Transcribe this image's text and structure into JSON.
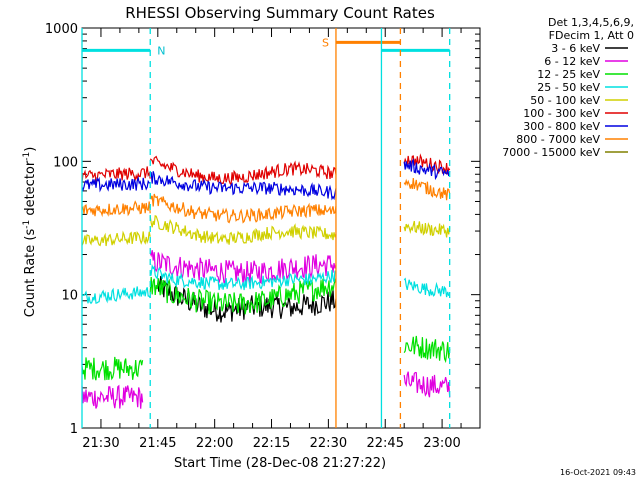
{
  "chart_data": {
    "type": "line",
    "title": "RHESSI Observing Summary Count Rates",
    "xlabel": "Start Time (28-Dec-08 21:27:22)",
    "ylabel_main": "Count Rate (s",
    "ylabel_sup1": "-1",
    "ylabel_mid": " detector",
    "ylabel_sup2": "-1",
    "ylabel_end": ")",
    "y_scale": "log",
    "ylim": [
      1,
      1000
    ],
    "xlim_minutes": [
      -5,
      100
    ],
    "x_ticks": [
      {
        "t": 0,
        "label": "21:30"
      },
      {
        "t": 15,
        "label": "21:45"
      },
      {
        "t": 30,
        "label": "22:00"
      },
      {
        "t": 45,
        "label": "22:15"
      },
      {
        "t": 60,
        "label": "22:30"
      },
      {
        "t": 75,
        "label": "22:45"
      },
      {
        "t": 90,
        "label": "23:00"
      }
    ],
    "y_ticks": [
      {
        "v": 1,
        "label": "1"
      },
      {
        "v": 10,
        "label": "10"
      },
      {
        "v": 100,
        "label": "100"
      },
      {
        "v": 1000,
        "label": "1000"
      }
    ],
    "legend_header_1": "Det 1,3,4,5,6,9,",
    "legend_header_2": "FDecim 1, Att 0",
    "legend_placement": "right-outside",
    "series": [
      {
        "name": "3 - 6 keV",
        "color": "#000000",
        "segments": [
          {
            "t0": 15,
            "t1": 62,
            "v": [
              11.5,
              9.5,
              8,
              7.5,
              8,
              8.2,
              8,
              8.5,
              9
            ]
          }
        ]
      },
      {
        "name": "6 - 12 keV",
        "color": "#e000e0",
        "segments": [
          {
            "t0": -5,
            "t1": 11,
            "v": [
              1.7,
              1.7,
              1.7
            ]
          },
          {
            "t0": 13,
            "t1": 62,
            "v": [
              18,
              16.5,
              15.5,
              15,
              14.5,
              15,
              16,
              16.5,
              17
            ]
          },
          {
            "t0": 80,
            "t1": 92,
            "v": [
              2.2,
              2.1,
              2.0
            ]
          }
        ]
      },
      {
        "name": "12 - 25 keV",
        "color": "#00e000",
        "segments": [
          {
            "t0": -5,
            "t1": 11,
            "v": [
              2.8,
              2.8,
              2.8
            ]
          },
          {
            "t0": 13,
            "t1": 62,
            "v": [
              12,
              10,
              9,
              8.5,
              8.5,
              9,
              10,
              11,
              12
            ]
          },
          {
            "t0": 80,
            "t1": 92,
            "v": [
              4.2,
              4.0,
              3.8
            ]
          }
        ]
      },
      {
        "name": "25 - 50 keV",
        "color": "#00e0e0",
        "segments": [
          {
            "t0": -5,
            "t1": 13,
            "v": [
              9.5,
              10,
              10.5
            ]
          },
          {
            "t0": 13,
            "t1": 62,
            "v": [
              15,
              13,
              12.5,
              12,
              12,
              12.5,
              13,
              13,
              14
            ]
          },
          {
            "t0": 80,
            "t1": 92,
            "v": [
              12,
              11,
              10.5
            ]
          }
        ]
      },
      {
        "name": "50 - 100 keV",
        "color": "#d0d000",
        "segments": [
          {
            "t0": -5,
            "t1": 13,
            "v": [
              25,
              26,
              27
            ]
          },
          {
            "t0": 13,
            "t1": 62,
            "v": [
              36,
              32,
              28,
              26,
              27,
              29,
              30,
              29,
              28
            ]
          },
          {
            "t0": 80,
            "t1": 92,
            "v": [
              33,
              31,
              30
            ]
          }
        ]
      },
      {
        "name": "100 - 300 keV",
        "color": "#e00000",
        "segments": [
          {
            "t0": -5,
            "t1": 13,
            "v": [
              77,
              80,
              82
            ]
          },
          {
            "t0": 13,
            "t1": 62,
            "v": [
              100,
              88,
              78,
              74,
              76,
              82,
              88,
              86,
              80
            ]
          },
          {
            "t0": 80,
            "t1": 92,
            "v": [
              105,
              97,
              88
            ]
          }
        ]
      },
      {
        "name": "300 - 800 keV",
        "color": "#0000e0",
        "segments": [
          {
            "t0": -5,
            "t1": 13,
            "v": [
              66,
              67,
              68
            ]
          },
          {
            "t0": 13,
            "t1": 62,
            "v": [
              76,
              70,
              65,
              63,
              63,
              63,
              62,
              60,
              58
            ]
          },
          {
            "t0": 80,
            "t1": 92,
            "v": [
              95,
              86,
              80
            ]
          }
        ]
      },
      {
        "name": "800 - 7000 keV",
        "color": "#ff8000",
        "segments": [
          {
            "t0": -5,
            "t1": 13,
            "v": [
              43,
              44,
              45
            ]
          },
          {
            "t0": 13,
            "t1": 62,
            "v": [
              52,
              46,
              41,
              39,
              39,
              40,
              42,
              43,
              42
            ]
          },
          {
            "t0": 80,
            "t1": 92,
            "v": [
              72,
              63,
              55
            ]
          }
        ]
      },
      {
        "name": "7000 - 15000 keV",
        "color": "#808000",
        "segments": []
      }
    ],
    "annotations": {
      "night_label": "N",
      "saa_label": "S",
      "night_bar": {
        "t0": -5,
        "t1": 13,
        "v": 680,
        "color": "#00e0e0"
      },
      "night_bar2": {
        "t0": 74,
        "t1": 92,
        "v": 680,
        "color": "#00e0e0"
      },
      "saa_bar": {
        "t0": 62,
        "t1": 79,
        "v": 780,
        "color": "#ff8000"
      },
      "night_edges": [
        {
          "t": -5,
          "color": "#00e0e0",
          "style": "solid"
        },
        {
          "t": 13,
          "color": "#00e0e0",
          "style": "dashed"
        },
        {
          "t": 74,
          "color": "#00e0e0",
          "style": "solid"
        },
        {
          "t": 92,
          "color": "#00e0e0",
          "style": "dashed"
        }
      ],
      "saa_edges": [
        {
          "t": 62,
          "color": "#ff8000",
          "style": "solid"
        },
        {
          "t": 79,
          "color": "#ff8000",
          "style": "dashed"
        }
      ]
    },
    "footer_timestamp": "16-Oct-2021 09:43"
  }
}
